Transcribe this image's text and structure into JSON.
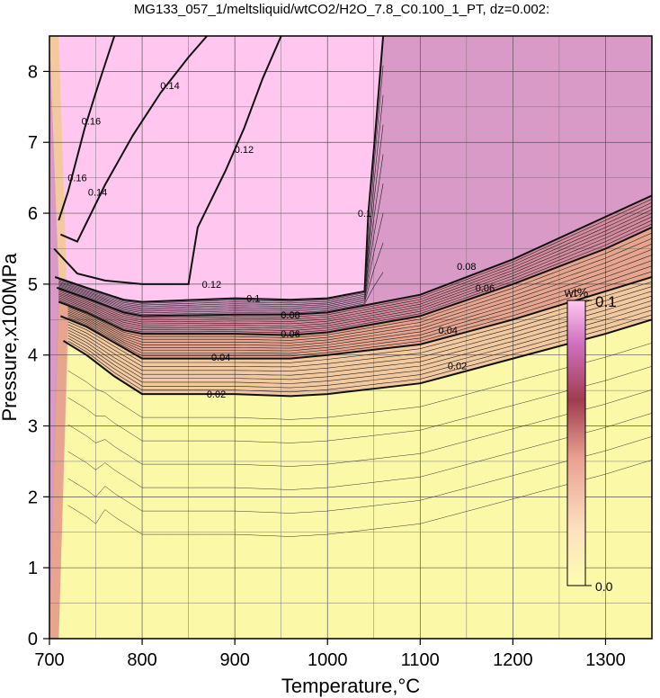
{
  "title": "MG133_057_1/meltsliquid/wtCO2/H2O_7.8_C0.100_1_PT, dz=0.002:",
  "chart_data": {
    "type": "heatmap",
    "xlabel": "Temperature,°C",
    "ylabel": "Pressure,x100MPa",
    "xlim": [
      700,
      1350
    ],
    "ylim": [
      0,
      8.5
    ],
    "x_ticks": [
      "700",
      "800",
      "900",
      "1000",
      "1100",
      "1200",
      "1300"
    ],
    "y_ticks": [
      "0",
      "1",
      "2",
      "3",
      "4",
      "5",
      "6",
      "7",
      "8"
    ],
    "grid": true,
    "colorbar": {
      "label": "wt%",
      "min_label": "0.0",
      "max_label": "0.1",
      "range": [
        0.0,
        0.1
      ],
      "colors": [
        "#fdfdb0",
        "#fde0c0",
        "#e8a090",
        "#a03c50",
        "#d070c0",
        "#ffc8f0"
      ]
    },
    "contours": [
      {
        "label": "0.02",
        "label_at": [
          [
            880,
            3.45
          ],
          [
            1140,
            3.85
          ]
        ],
        "points": [
          [
            715,
            4.2
          ],
          [
            740,
            4.0
          ],
          [
            770,
            3.7
          ],
          [
            800,
            3.45
          ],
          [
            900,
            3.45
          ],
          [
            960,
            3.42
          ],
          [
            1000,
            3.45
          ],
          [
            1100,
            3.6
          ],
          [
            1200,
            3.95
          ],
          [
            1300,
            4.3
          ],
          [
            1350,
            4.5
          ]
        ]
      },
      {
        "label": "0.04",
        "label_at": [
          [
            885,
            3.97
          ],
          [
            1130,
            4.35
          ]
        ],
        "points": [
          [
            712,
            4.55
          ],
          [
            740,
            4.4
          ],
          [
            780,
            4.1
          ],
          [
            800,
            3.95
          ],
          [
            900,
            3.95
          ],
          [
            960,
            3.95
          ],
          [
            1000,
            4.0
          ],
          [
            1100,
            4.15
          ],
          [
            1200,
            4.5
          ],
          [
            1300,
            4.9
          ],
          [
            1350,
            5.1
          ]
        ]
      },
      {
        "label": "0.06",
        "label_at": [
          [
            960,
            4.3
          ],
          [
            1170,
            4.95
          ]
        ],
        "points": [
          [
            710,
            4.75
          ],
          [
            740,
            4.6
          ],
          [
            780,
            4.35
          ],
          [
            800,
            4.3
          ],
          [
            900,
            4.3
          ],
          [
            960,
            4.28
          ],
          [
            1000,
            4.32
          ],
          [
            1100,
            4.55
          ],
          [
            1200,
            5.0
          ],
          [
            1300,
            5.5
          ],
          [
            1350,
            5.8
          ]
        ]
      },
      {
        "label": "0.08",
        "label_at": [
          [
            960,
            4.57
          ],
          [
            1150,
            5.25
          ]
        ],
        "points": [
          [
            708,
            4.95
          ],
          [
            740,
            4.8
          ],
          [
            780,
            4.6
          ],
          [
            800,
            4.55
          ],
          [
            900,
            4.57
          ],
          [
            960,
            4.57
          ],
          [
            1000,
            4.6
          ],
          [
            1100,
            4.85
          ],
          [
            1200,
            5.35
          ],
          [
            1300,
            5.95
          ],
          [
            1350,
            6.25
          ]
        ]
      },
      {
        "label": "0.1",
        "label_at": [
          [
            1040,
            6.0
          ],
          [
            920,
            4.8
          ]
        ],
        "points": [
          [
            706,
            5.1
          ],
          [
            740,
            4.95
          ],
          [
            780,
            4.78
          ],
          [
            800,
            4.75
          ],
          [
            900,
            4.8
          ],
          [
            960,
            4.78
          ],
          [
            1000,
            4.8
          ],
          [
            1040,
            4.9
          ],
          [
            1044,
            6.0
          ],
          [
            1052,
            7.2
          ],
          [
            1060,
            8.5
          ]
        ]
      },
      {
        "label": "0.12",
        "label_at": [
          [
            875,
            5.0
          ],
          [
            910,
            6.9
          ]
        ],
        "points": [
          [
            705,
            5.5
          ],
          [
            730,
            5.15
          ],
          [
            760,
            5.05
          ],
          [
            800,
            5.0
          ],
          [
            850,
            5.0
          ],
          [
            860,
            5.8
          ],
          [
            890,
            6.6
          ],
          [
            910,
            7.2
          ],
          [
            930,
            7.9
          ],
          [
            950,
            8.5
          ]
        ]
      },
      {
        "label": "0.14",
        "label_at": [
          [
            830,
            7.8
          ],
          [
            752,
            6.3
          ]
        ],
        "points": [
          [
            712,
            5.7
          ],
          [
            730,
            5.6
          ],
          [
            745,
            6.0
          ],
          [
            760,
            6.4
          ],
          [
            790,
            7.1
          ],
          [
            820,
            7.7
          ],
          [
            850,
            8.2
          ],
          [
            870,
            8.5
          ]
        ]
      },
      {
        "label": "0.16",
        "label_at": [
          [
            745,
            7.3
          ],
          [
            730,
            6.5
          ]
        ],
        "points": [
          [
            710,
            5.9
          ],
          [
            720,
            6.3
          ],
          [
            728,
            6.7
          ],
          [
            738,
            7.2
          ],
          [
            750,
            7.7
          ],
          [
            760,
            8.1
          ],
          [
            770,
            8.5
          ]
        ]
      }
    ]
  }
}
